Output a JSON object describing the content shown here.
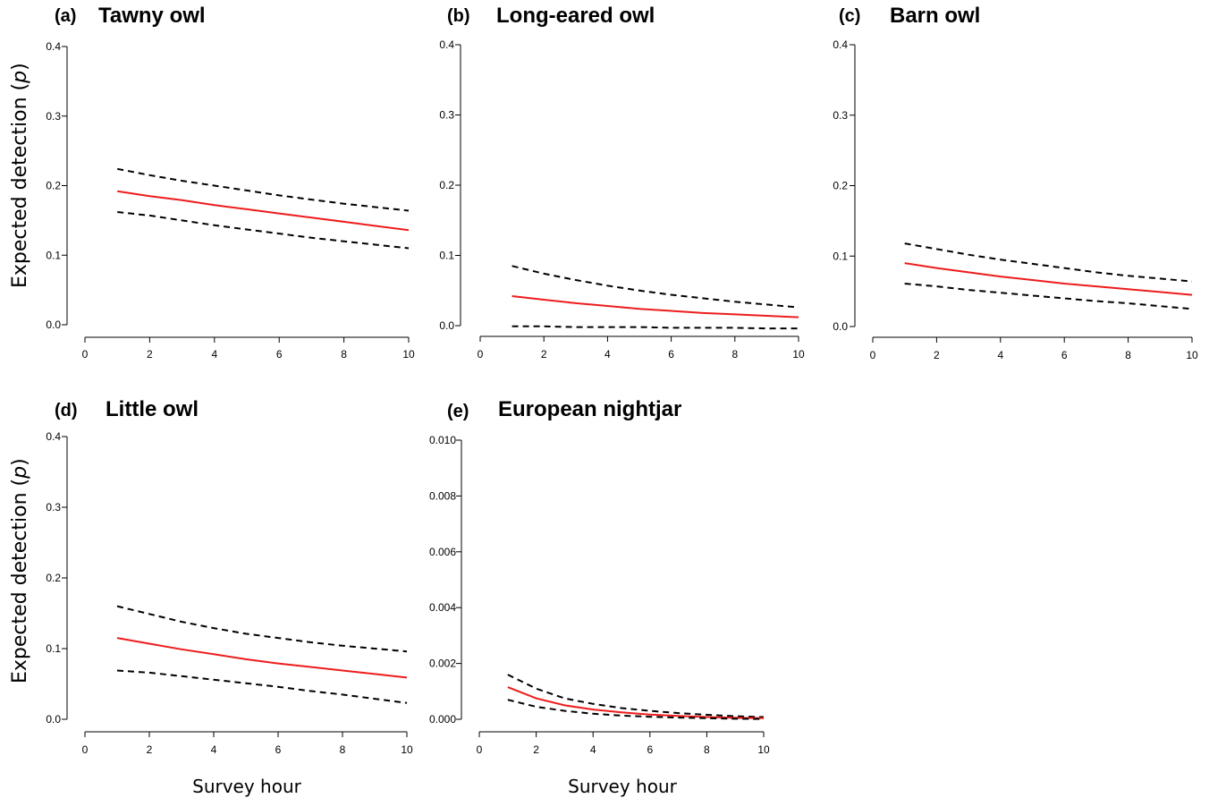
{
  "figure": {
    "ylabel_main": "Expected detection (",
    "ylabel_italic": "p",
    "ylabel_end": ")",
    "xlabel": "Survey hour"
  },
  "chart_data": [
    {
      "type": "line",
      "panel": "(a)",
      "title": "Tawny owl",
      "x": [
        1,
        2,
        3,
        4,
        5,
        6,
        7,
        8,
        9,
        10
      ],
      "xlim": [
        0,
        10
      ],
      "xticks": [
        "0",
        "2",
        "4",
        "6",
        "8",
        "10"
      ],
      "ylim": [
        0,
        0.4
      ],
      "yticks": [
        "0.0",
        "0.1",
        "0.2",
        "0.3",
        "0.4"
      ],
      "series": [
        {
          "role": "upper",
          "values": [
            0.224,
            0.215,
            0.207,
            0.2,
            0.193,
            0.186,
            0.18,
            0.174,
            0.169,
            0.164
          ]
        },
        {
          "role": "mean",
          "values": [
            0.192,
            0.185,
            0.179,
            0.172,
            0.166,
            0.16,
            0.154,
            0.148,
            0.142,
            0.136
          ]
        },
        {
          "role": "lower",
          "values": [
            0.162,
            0.157,
            0.15,
            0.143,
            0.137,
            0.131,
            0.125,
            0.12,
            0.115,
            0.11
          ]
        }
      ]
    },
    {
      "type": "line",
      "panel": "(b)",
      "title": "Long-eared owl",
      "x": [
        1,
        2,
        3,
        4,
        5,
        6,
        7,
        8,
        9,
        10
      ],
      "xlim": [
        0,
        10
      ],
      "xticks": [
        "0",
        "2",
        "4",
        "6",
        "8",
        "10"
      ],
      "ylim": [
        0,
        0.4
      ],
      "yticks": [
        "0.0",
        "0.1",
        "0.2",
        "0.3",
        "0.4"
      ],
      "series": [
        {
          "role": "upper",
          "values": [
            0.085,
            0.074,
            0.065,
            0.057,
            0.05,
            0.044,
            0.039,
            0.034,
            0.03,
            0.026
          ]
        },
        {
          "role": "mean",
          "values": [
            0.042,
            0.037,
            0.032,
            0.028,
            0.024,
            0.021,
            0.018,
            0.016,
            0.014,
            0.012
          ]
        },
        {
          "role": "lower",
          "values": [
            -0.001,
            -0.001,
            -0.002,
            -0.002,
            -0.002,
            -0.003,
            -0.003,
            -0.003,
            -0.004,
            -0.004
          ]
        }
      ]
    },
    {
      "type": "line",
      "panel": "(c)",
      "title": "Barn owl",
      "x": [
        1,
        2,
        3,
        4,
        5,
        6,
        7,
        8,
        9,
        10
      ],
      "xlim": [
        0,
        10
      ],
      "xticks": [
        "0",
        "2",
        "4",
        "6",
        "8",
        "10"
      ],
      "ylim": [
        0,
        0.4
      ],
      "yticks": [
        "0.0",
        "0.1",
        "0.2",
        "0.3",
        "0.4"
      ],
      "series": [
        {
          "role": "upper",
          "values": [
            0.118,
            0.11,
            0.102,
            0.095,
            0.089,
            0.083,
            0.077,
            0.072,
            0.068,
            0.064
          ]
        },
        {
          "role": "mean",
          "values": [
            0.09,
            0.083,
            0.077,
            0.071,
            0.066,
            0.061,
            0.057,
            0.053,
            0.049,
            0.045
          ]
        },
        {
          "role": "lower",
          "values": [
            0.061,
            0.057,
            0.052,
            0.048,
            0.044,
            0.04,
            0.036,
            0.033,
            0.029,
            0.025
          ]
        }
      ]
    },
    {
      "type": "line",
      "panel": "(d)",
      "title": "Little owl",
      "x": [
        1,
        2,
        3,
        4,
        5,
        6,
        7,
        8,
        9,
        10
      ],
      "xlim": [
        0,
        10
      ],
      "xticks": [
        "0",
        "2",
        "4",
        "6",
        "8",
        "10"
      ],
      "ylim": [
        0,
        0.4
      ],
      "yticks": [
        "0.0",
        "0.1",
        "0.2",
        "0.3",
        "0.4"
      ],
      "series": [
        {
          "role": "upper",
          "values": [
            0.16,
            0.149,
            0.138,
            0.129,
            0.121,
            0.115,
            0.109,
            0.104,
            0.1,
            0.096
          ]
        },
        {
          "role": "mean",
          "values": [
            0.115,
            0.107,
            0.099,
            0.092,
            0.085,
            0.079,
            0.074,
            0.069,
            0.064,
            0.059
          ]
        },
        {
          "role": "lower",
          "values": [
            0.069,
            0.066,
            0.061,
            0.056,
            0.051,
            0.046,
            0.04,
            0.035,
            0.029,
            0.023
          ]
        }
      ]
    },
    {
      "type": "line",
      "panel": "(e)",
      "title": "European nightjar",
      "x": [
        1,
        2,
        3,
        4,
        5,
        6,
        7,
        8,
        9,
        10
      ],
      "xlim": [
        0,
        10
      ],
      "xticks": [
        "0",
        "2",
        "4",
        "6",
        "8",
        "10"
      ],
      "ylim": [
        0,
        0.01
      ],
      "yticks": [
        "0.000",
        "0.002",
        "0.004",
        "0.006",
        "0.008",
        "0.010"
      ],
      "series": [
        {
          "role": "upper",
          "values": [
            0.0016,
            0.0011,
            0.00075,
            0.00055,
            0.0004,
            0.0003,
            0.00022,
            0.00016,
            0.00011,
            8e-05
          ]
        },
        {
          "role": "mean",
          "values": [
            0.00115,
            0.00075,
            0.0005,
            0.00035,
            0.00025,
            0.00017,
            0.00012,
            8e-05,
            5e-05,
            4e-05
          ]
        },
        {
          "role": "lower",
          "values": [
            0.0007,
            0.00045,
            0.0003,
            0.0002,
            0.00013,
            9e-05,
            6e-05,
            4e-05,
            2e-05,
            1e-05
          ]
        }
      ]
    }
  ]
}
